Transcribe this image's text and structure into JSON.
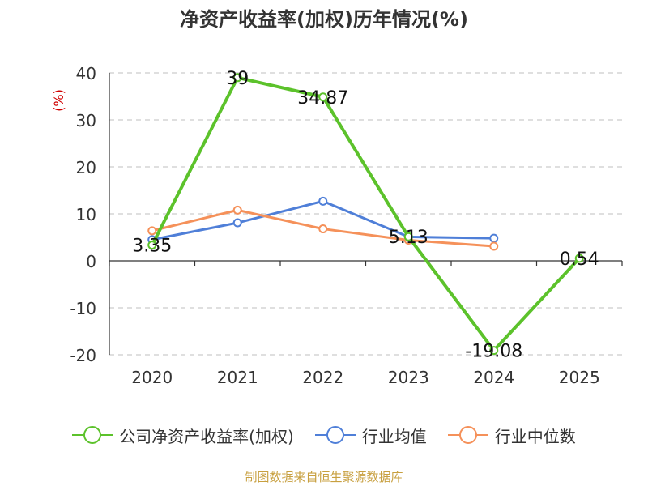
{
  "chart_data": {
    "type": "line",
    "title": "净资产收益率(加权)历年情况(%)",
    "ylabel": "(%)",
    "xlabel": "",
    "categories": [
      "2020",
      "2021",
      "2022",
      "2023",
      "2024",
      "2025"
    ],
    "ylim": [
      -20,
      40
    ],
    "yticks": [
      "40",
      "30",
      "20",
      "10",
      "0",
      "-10",
      "-20"
    ],
    "ytick_values": [
      40,
      30,
      20,
      10,
      0,
      -10,
      -20
    ],
    "grid": true,
    "series": [
      {
        "name": "公司净资产收益率(加权)",
        "color": "#5cc22b",
        "values": [
          3.35,
          39,
          34.87,
          5.13,
          -19.08,
          0.54
        ],
        "labels": [
          "3.35",
          "39",
          "34.87",
          "5.13",
          "-19.08",
          "0.54"
        ]
      },
      {
        "name": "行业均值",
        "color": "#4f7fd8",
        "values": [
          4.5,
          8.1,
          12.7,
          5.1,
          4.8,
          null
        ]
      },
      {
        "name": "行业中位数",
        "color": "#f5915a",
        "values": [
          6.4,
          10.8,
          6.8,
          4.4,
          3.1,
          null
        ]
      }
    ],
    "legend_position": "bottom",
    "source": "制图数据来自恒生聚源数据库"
  }
}
